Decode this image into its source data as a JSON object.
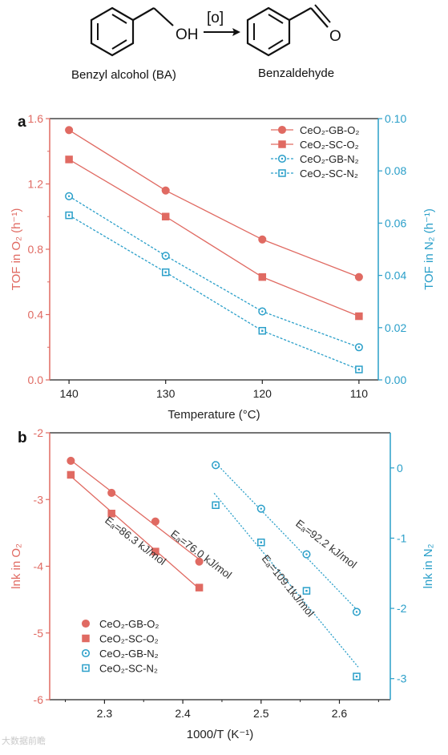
{
  "scheme": {
    "reactant_label": "Benzyl alcohol (BA)",
    "product_label": "Benzaldehyde",
    "reagent": "[o]",
    "oh_label": "OH",
    "o_label": "O"
  },
  "watermark": "大数据前瞻",
  "chart_data": [
    {
      "type": "line",
      "panel_label": "a",
      "xlabel": "Temperature (°C)",
      "ylabel_left": "TOF in O₂ (h⁻¹)",
      "ylabel_right": "TOF in N₂ (h⁻¹)",
      "x_ticks": [
        "140",
        "130",
        "120",
        "110"
      ],
      "xlim": [
        142,
        108
      ],
      "ylim_left": [
        0.0,
        1.6
      ],
      "ylim_right": [
        0.0,
        0.1
      ],
      "y_ticks_left": [
        "0.0",
        "0.4",
        "0.8",
        "1.2",
        "1.6"
      ],
      "y_ticks_right": [
        "0.00",
        "0.02",
        "0.04",
        "0.06",
        "0.08",
        "0.10"
      ],
      "legend_position": "top-right",
      "x": [
        140,
        130,
        120,
        110
      ],
      "series": [
        {
          "name": "CeO₂-GB-O₂",
          "axis": "left",
          "marker": "circle-filled",
          "line": "solid",
          "color": "#e06a62",
          "values": [
            1.53,
            1.16,
            0.86,
            0.63
          ]
        },
        {
          "name": "CeO₂-SC-O₂",
          "axis": "left",
          "marker": "square-filled",
          "line": "solid",
          "color": "#e06a62",
          "values": [
            1.35,
            1.0,
            0.63,
            0.39
          ]
        },
        {
          "name": "CeO₂-GB-N₂",
          "axis": "right",
          "marker": "circle-open",
          "line": "dashed",
          "color": "#2a9fc9",
          "values": [
            0.0703,
            0.0475,
            0.0262,
            0.0125
          ]
        },
        {
          "name": "CeO₂-SC-N₂",
          "axis": "right",
          "marker": "square-open",
          "line": "dashed",
          "color": "#2a9fc9",
          "values": [
            0.063,
            0.0412,
            0.0188,
            0.004
          ]
        }
      ]
    },
    {
      "type": "scatter",
      "panel_label": "b",
      "xlabel": "1000/T (K⁻¹)",
      "ylabel_left": "lnk in O₂",
      "ylabel_right": "lnk in N₂",
      "x_ticks": [
        "2.3",
        "2.4",
        "2.5",
        "2.6"
      ],
      "xlim": [
        2.23,
        2.665
      ],
      "ylim_left": [
        -6,
        -2
      ],
      "ylim_right": [
        -3.3,
        0.5
      ],
      "y_ticks_left": [
        "-6",
        "-5",
        "-4",
        "-3",
        "-2"
      ],
      "y_ticks_right": [
        "-3",
        "-2",
        "-1",
        "0"
      ],
      "legend_position": "bottom-left",
      "series": [
        {
          "name": "CeO₂-GB-O₂",
          "axis": "left",
          "marker": "circle-filled",
          "color": "#e06a62",
          "fit": "solid",
          "x": [
            2.257,
            2.309,
            2.365,
            2.421
          ],
          "values": [
            -2.42,
            -2.9,
            -3.33,
            -3.93
          ]
        },
        {
          "name": "CeO₂-SC-O₂",
          "axis": "left",
          "marker": "square-filled",
          "color": "#e06a62",
          "fit": "solid",
          "x": [
            2.257,
            2.309,
            2.365,
            2.421
          ],
          "values": [
            -2.63,
            -3.21,
            -3.78,
            -4.32
          ]
        },
        {
          "name": "CeO₂-GB-N₂",
          "axis": "right",
          "marker": "circle-open",
          "color": "#2a9fc9",
          "fit": "dotted",
          "x": [
            2.442,
            2.5,
            2.558,
            2.622
          ],
          "values": [
            0.04,
            -0.58,
            -1.23,
            -2.05
          ]
        },
        {
          "name": "CeO₂-SC-N₂",
          "axis": "right",
          "marker": "square-open",
          "color": "#2a9fc9",
          "fit": "dotted",
          "x": [
            2.442,
            2.5,
            2.558,
            2.622
          ],
          "values": [
            -0.53,
            -1.06,
            -1.75,
            -2.97
          ]
        }
      ],
      "annotations": [
        {
          "text": "Eₐ=76.0 kJ/mol",
          "color": "#333333"
        },
        {
          "text": "Eₐ=86.3 kJ/mol",
          "color": "#333333"
        },
        {
          "text": "Eₐ=92.2 kJ/mol",
          "color": "#333333"
        },
        {
          "text": "Eₐ=109.1kJ/mol",
          "color": "#333333"
        }
      ]
    }
  ]
}
